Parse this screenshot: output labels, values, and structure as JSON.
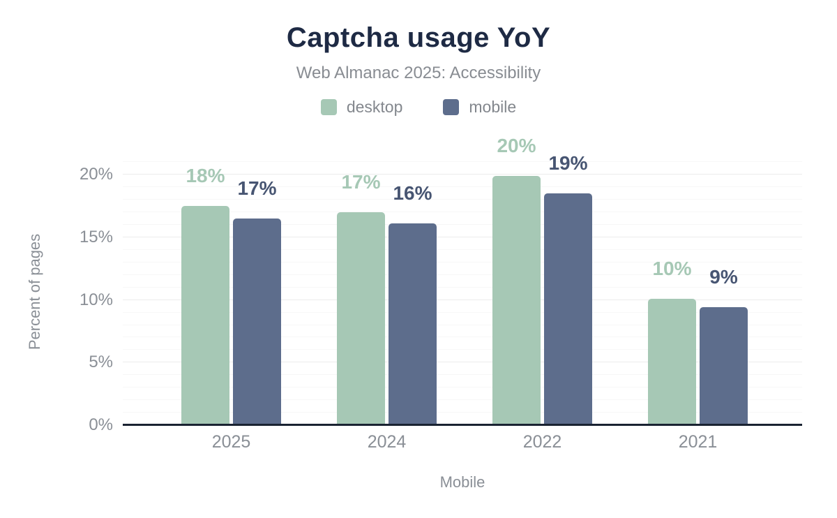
{
  "chart_data": {
    "type": "bar",
    "title": "Captcha usage YoY",
    "subtitle": "Web Almanac 2025: Accessibility",
    "categories": [
      "2025",
      "2024",
      "2022",
      "2021"
    ],
    "series": [
      {
        "name": "desktop",
        "color": "#a6c8b5",
        "label_color": "#a6c8b5",
        "values": [
          17.5,
          17.0,
          19.9,
          10.1
        ],
        "labels": [
          "18%",
          "17%",
          "20%",
          "10%"
        ]
      },
      {
        "name": "mobile",
        "color": "#5d6d8c",
        "label_color": "#475572",
        "values": [
          16.5,
          16.1,
          18.5,
          9.4
        ],
        "labels": [
          "17%",
          "16%",
          "19%",
          "9%"
        ]
      }
    ],
    "xlabel": "Mobile",
    "ylabel": "Percent of pages",
    "y_ticks": [
      {
        "label": "0%",
        "value": 0
      },
      {
        "label": "5%",
        "value": 5
      },
      {
        "label": "10%",
        "value": 10
      },
      {
        "label": "15%",
        "value": 15
      },
      {
        "label": "20%",
        "value": 20
      }
    ],
    "ylim": [
      0,
      21.3
    ],
    "grid": {
      "minor_step": 1,
      "major_step": 5,
      "top": 21,
      "orientation": "horizontal"
    },
    "legend_position": "top",
    "colors": {
      "title": "#1e2a44",
      "subtitle_text": "#888c92",
      "axis_text": "#8a8f96",
      "axis_line": "#1a2332",
      "grid_minor": "#f7f7f7",
      "grid_major": "#ececec",
      "background": "#ffffff"
    }
  }
}
